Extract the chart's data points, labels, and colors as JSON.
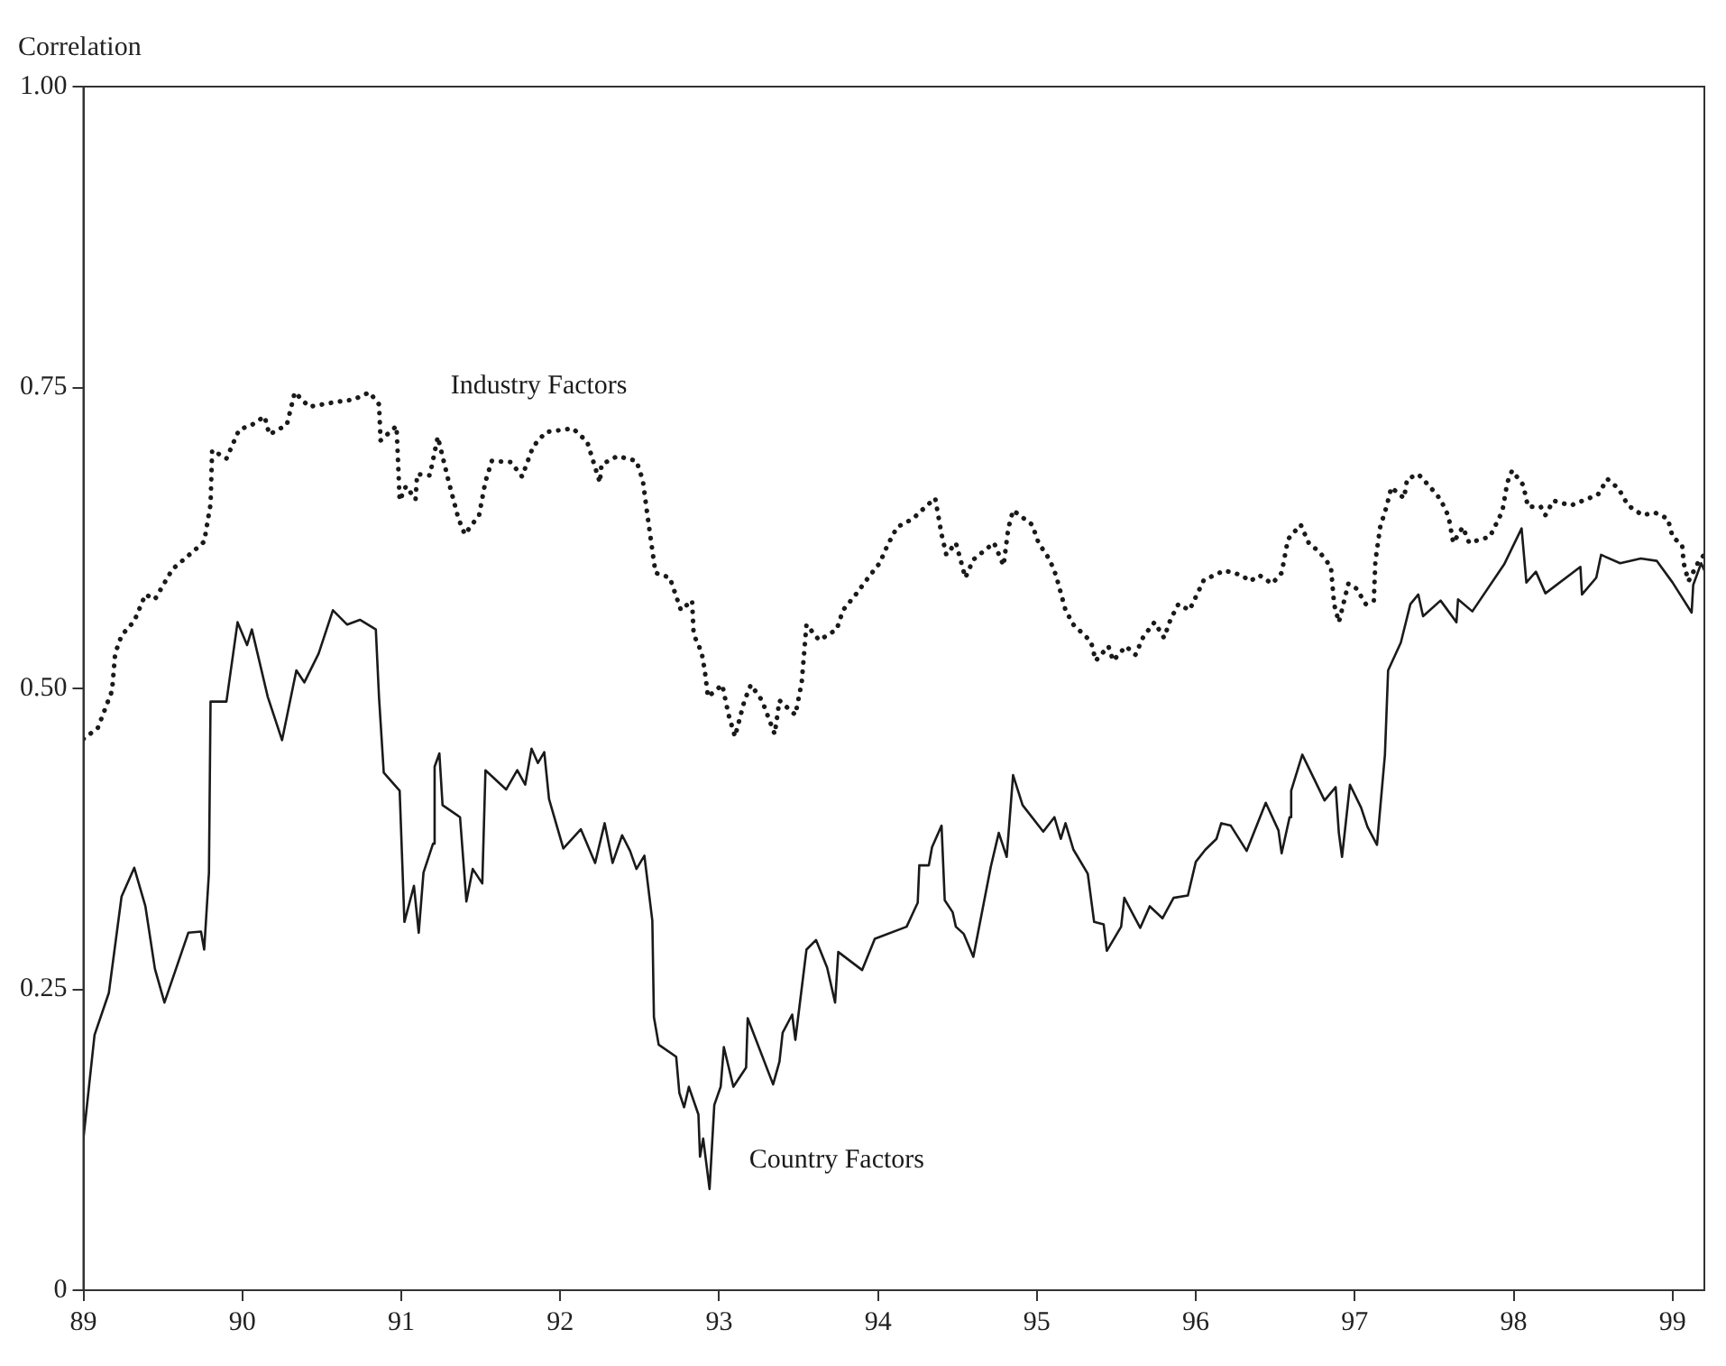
{
  "chart_data": {
    "type": "line",
    "ylabel": "Correlation",
    "xlim": [
      89,
      99.2
    ],
    "ylim": [
      0,
      1
    ],
    "xticks": [
      89,
      90,
      91,
      92,
      93,
      94,
      95,
      96,
      97,
      98,
      99
    ],
    "yticks": [
      0,
      0.75,
      {
        "value": 0.25,
        "label": "0.25"
      },
      {
        "value": 0.5,
        "label": "0.50"
      },
      {
        "value": 1,
        "label": "1.00"
      }
    ],
    "grid": false,
    "legend": false,
    "marker": "none",
    "series": [
      {
        "name": "Industry Factors",
        "color": "#1a1a1a",
        "line_style": "dotted",
        "x": [
          89.0,
          89.09,
          89.18,
          89.2,
          89.24,
          89.32,
          89.39,
          89.45,
          89.56,
          89.71,
          89.76,
          89.8,
          89.81,
          89.9,
          89.98,
          90.06,
          90.14,
          90.17,
          90.28,
          90.33,
          90.42,
          90.59,
          90.7,
          90.8,
          90.86,
          90.87,
          90.97,
          90.98,
          90.99,
          91.03,
          91.09,
          91.1,
          91.18,
          91.23,
          91.3,
          91.36,
          91.4,
          91.49,
          91.53,
          91.57,
          91.69,
          91.76,
          91.83,
          91.91,
          92.08,
          92.17,
          92.25,
          92.26,
          92.36,
          92.48,
          92.52,
          92.55,
          92.6,
          92.69,
          92.76,
          92.83,
          92.84,
          92.89,
          92.91,
          92.93,
          93.02,
          93.06,
          93.1,
          93.16,
          93.2,
          93.27,
          93.35,
          93.38,
          93.48,
          93.52,
          93.54,
          93.55,
          93.63,
          93.74,
          93.78,
          93.86,
          93.95,
          94.01,
          94.06,
          94.12,
          94.22,
          94.3,
          94.36,
          94.4,
          94.43,
          94.49,
          94.55,
          94.6,
          94.73,
          94.79,
          94.82,
          94.85,
          94.97,
          95.01,
          95.08,
          95.12,
          95.18,
          95.23,
          95.34,
          95.37,
          95.45,
          95.48,
          95.56,
          95.62,
          95.67,
          95.74,
          95.8,
          95.84,
          95.89,
          95.96,
          96.05,
          96.18,
          96.29,
          96.34,
          96.4,
          96.48,
          96.54,
          96.58,
          96.66,
          96.71,
          96.78,
          96.85,
          96.87,
          96.9,
          96.96,
          97.01,
          97.07,
          97.12,
          97.13,
          97.16,
          97.2,
          97.23,
          97.31,
          97.33,
          97.4,
          97.47,
          97.54,
          97.59,
          97.62,
          97.68,
          97.72,
          97.85,
          97.91,
          97.93,
          97.96,
          97.99,
          98.06,
          98.09,
          98.17,
          98.2,
          98.25,
          98.36,
          98.53,
          98.59,
          98.66,
          98.72,
          98.81,
          98.89,
          98.97,
          99.0,
          99.06,
          99.07,
          99.1,
          99.17,
          99.2
        ],
        "values": [
          0.458,
          0.467,
          0.498,
          0.529,
          0.544,
          0.556,
          0.578,
          0.574,
          0.599,
          0.616,
          0.622,
          0.653,
          0.698,
          0.691,
          0.715,
          0.719,
          0.726,
          0.711,
          0.719,
          0.746,
          0.734,
          0.738,
          0.74,
          0.746,
          0.736,
          0.706,
          0.718,
          0.688,
          0.656,
          0.668,
          0.657,
          0.678,
          0.677,
          0.709,
          0.671,
          0.641,
          0.628,
          0.644,
          0.672,
          0.689,
          0.688,
          0.676,
          0.701,
          0.713,
          0.716,
          0.705,
          0.671,
          0.686,
          0.693,
          0.689,
          0.673,
          0.643,
          0.596,
          0.592,
          0.565,
          0.573,
          0.545,
          0.53,
          0.515,
          0.493,
          0.503,
          0.478,
          0.46,
          0.49,
          0.503,
          0.49,
          0.462,
          0.49,
          0.478,
          0.505,
          0.537,
          0.553,
          0.54,
          0.549,
          0.565,
          0.578,
          0.594,
          0.604,
          0.619,
          0.634,
          0.641,
          0.651,
          0.658,
          0.628,
          0.611,
          0.621,
          0.592,
          0.607,
          0.621,
          0.602,
          0.633,
          0.648,
          0.636,
          0.621,
          0.607,
          0.594,
          0.565,
          0.553,
          0.539,
          0.523,
          0.535,
          0.523,
          0.535,
          0.528,
          0.543,
          0.555,
          0.542,
          0.557,
          0.57,
          0.565,
          0.59,
          0.598,
          0.594,
          0.589,
          0.594,
          0.587,
          0.596,
          0.624,
          0.636,
          0.621,
          0.613,
          0.601,
          0.57,
          0.555,
          0.587,
          0.583,
          0.57,
          0.573,
          0.606,
          0.634,
          0.651,
          0.667,
          0.658,
          0.674,
          0.678,
          0.668,
          0.657,
          0.643,
          0.621,
          0.634,
          0.621,
          0.626,
          0.642,
          0.648,
          0.671,
          0.681,
          0.669,
          0.651,
          0.651,
          0.644,
          0.656,
          0.652,
          0.661,
          0.674,
          0.666,
          0.652,
          0.644,
          0.646,
          0.641,
          0.626,
          0.619,
          0.604,
          0.589,
          0.607,
          0.611
        ]
      },
      {
        "name": "Country Factors",
        "color": "#1a1a1a",
        "line_style": "solid",
        "x": [
          89.0,
          89.07,
          89.16,
          89.24,
          89.32,
          89.39,
          89.45,
          89.51,
          89.66,
          89.74,
          89.76,
          89.79,
          89.8,
          89.9,
          89.97,
          90.03,
          90.06,
          90.16,
          90.25,
          90.34,
          90.39,
          90.48,
          90.57,
          90.66,
          90.74,
          90.84,
          90.86,
          90.89,
          90.99,
          91.02,
          91.08,
          91.11,
          91.14,
          91.2,
          91.21,
          91.24,
          91.26,
          91.37,
          91.41,
          91.45,
          91.51,
          91.53,
          91.66,
          91.73,
          91.78,
          91.82,
          91.86,
          91.9,
          91.93,
          92.02,
          92.13,
          92.22,
          92.28,
          92.33,
          92.39,
          92.44,
          92.48,
          92.53,
          92.58,
          92.59,
          92.62,
          92.73,
          92.75,
          92.78,
          92.81,
          92.87,
          92.88,
          92.9,
          92.94,
          92.97,
          93.01,
          93.03,
          93.09,
          93.17,
          93.18,
          93.34,
          93.38,
          93.4,
          93.46,
          93.48,
          93.55,
          93.61,
          93.68,
          93.73,
          93.75,
          93.9,
          93.98,
          94.18,
          94.25,
          94.26,
          94.32,
          94.34,
          94.4,
          94.42,
          94.47,
          94.49,
          94.54,
          94.6,
          94.71,
          94.76,
          94.81,
          94.85,
          94.91,
          95.04,
          95.11,
          95.15,
          95.18,
          95.23,
          95.32,
          95.36,
          95.42,
          95.44,
          95.53,
          95.55,
          95.65,
          95.71,
          95.79,
          95.86,
          95.95,
          96.0,
          96.06,
          96.13,
          96.16,
          96.22,
          96.32,
          96.44,
          96.52,
          96.54,
          96.59,
          96.6,
          96.67,
          96.81,
          96.88,
          96.9,
          96.92,
          96.97,
          97.04,
          97.08,
          97.14,
          97.19,
          97.21,
          97.29,
          97.35,
          97.4,
          97.43,
          97.54,
          97.64,
          97.65,
          97.74,
          97.94,
          98.05,
          98.08,
          98.14,
          98.2,
          98.42,
          98.43,
          98.52,
          98.55,
          98.67,
          98.8,
          98.9,
          99.0,
          99.12,
          99.13,
          99.18,
          99.2
        ],
        "values": [
          0.126,
          0.212,
          0.247,
          0.327,
          0.351,
          0.319,
          0.267,
          0.239,
          0.297,
          0.298,
          0.283,
          0.347,
          0.489,
          0.489,
          0.555,
          0.536,
          0.549,
          0.493,
          0.457,
          0.515,
          0.505,
          0.529,
          0.565,
          0.553,
          0.557,
          0.549,
          0.493,
          0.43,
          0.415,
          0.306,
          0.336,
          0.297,
          0.347,
          0.371,
          0.435,
          0.446,
          0.403,
          0.393,
          0.323,
          0.35,
          0.338,
          0.432,
          0.416,
          0.432,
          0.42,
          0.45,
          0.438,
          0.447,
          0.408,
          0.367,
          0.383,
          0.355,
          0.388,
          0.355,
          0.378,
          0.365,
          0.35,
          0.361,
          0.307,
          0.227,
          0.204,
          0.194,
          0.164,
          0.152,
          0.169,
          0.146,
          0.111,
          0.126,
          0.084,
          0.154,
          0.169,
          0.202,
          0.169,
          0.185,
          0.226,
          0.171,
          0.19,
          0.214,
          0.229,
          0.208,
          0.283,
          0.291,
          0.268,
          0.239,
          0.281,
          0.266,
          0.292,
          0.302,
          0.322,
          0.353,
          0.353,
          0.368,
          0.386,
          0.324,
          0.314,
          0.302,
          0.296,
          0.277,
          0.352,
          0.38,
          0.36,
          0.428,
          0.403,
          0.381,
          0.393,
          0.375,
          0.388,
          0.366,
          0.346,
          0.306,
          0.304,
          0.282,
          0.302,
          0.326,
          0.301,
          0.319,
          0.309,
          0.326,
          0.328,
          0.356,
          0.366,
          0.375,
          0.388,
          0.386,
          0.365,
          0.405,
          0.382,
          0.363,
          0.393,
          0.415,
          0.445,
          0.407,
          0.418,
          0.38,
          0.36,
          0.42,
          0.401,
          0.385,
          0.37,
          0.445,
          0.515,
          0.538,
          0.57,
          0.578,
          0.56,
          0.573,
          0.555,
          0.574,
          0.564,
          0.603,
          0.633,
          0.588,
          0.597,
          0.579,
          0.601,
          0.578,
          0.592,
          0.611,
          0.604,
          0.608,
          0.606,
          0.588,
          0.563,
          0.586,
          0.604,
          0.598
        ]
      }
    ]
  }
}
